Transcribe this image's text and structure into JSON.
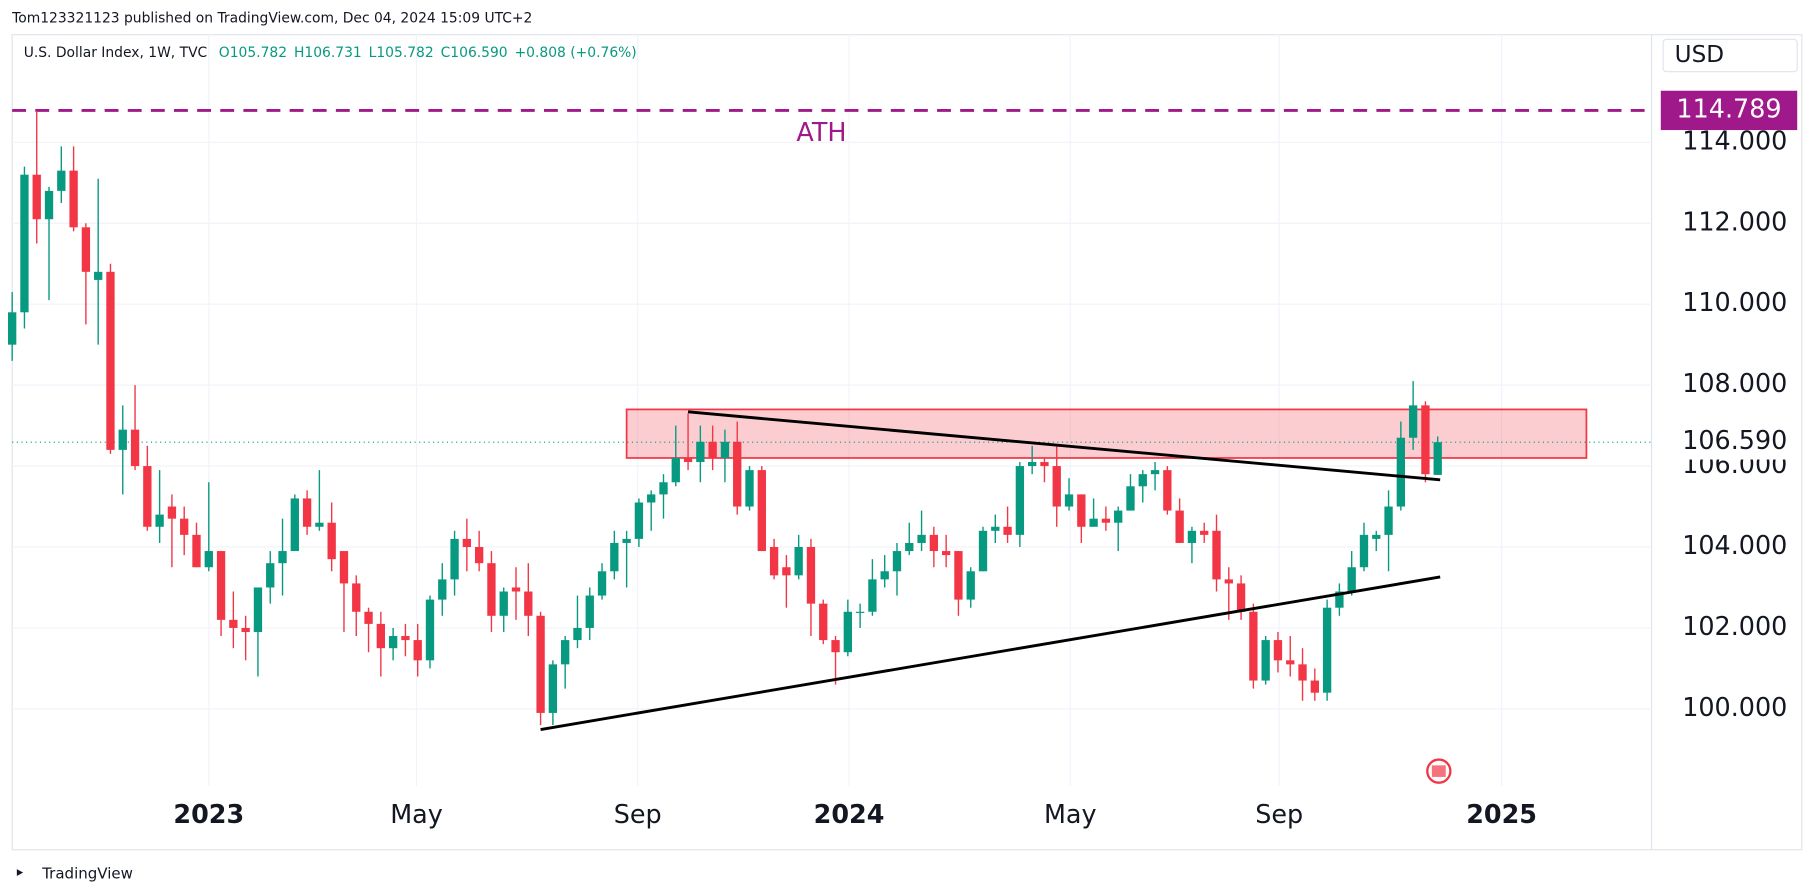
{
  "header": {
    "publisher": "Tom123321123 published on TradingView.com, Dec 04, 2024 15:09 UTC+2"
  },
  "footer": {
    "brand": "TradingView"
  },
  "chart_data": {
    "type": "candlestick",
    "title": "U.S. Dollar Index, 1W, TVC",
    "ohlc_legend": [
      "O105.782",
      "H106.731",
      "L105.782",
      "C106.590",
      "+0.808 (+0.76%)"
    ],
    "currency": "USD",
    "up_color": "#089981",
    "down_color": "#f23645",
    "open": [
      109.0,
      109.8,
      113.2,
      112.1,
      112.8,
      113.3,
      111.9,
      110.6,
      110.8,
      106.4,
      106.9,
      106.0,
      104.5,
      105.0,
      104.7,
      104.3,
      103.5,
      103.9,
      102.2,
      102.0,
      101.9,
      103.0,
      103.6,
      103.9,
      105.2,
      104.5,
      104.6,
      103.9,
      103.1,
      102.4,
      102.1,
      101.5,
      101.8,
      101.7,
      101.2,
      102.7,
      103.2,
      104.2,
      104.0,
      103.6,
      102.3,
      103.0,
      102.9,
      102.3,
      99.9,
      101.1,
      101.7,
      102.0,
      102.8,
      103.4,
      104.1,
      104.2,
      105.1,
      105.3,
      105.6,
      106.2,
      106.1,
      106.6,
      106.2,
      106.6,
      105.0,
      105.9,
      104.0,
      103.5,
      103.3,
      104.0,
      102.6,
      101.7,
      101.4,
      102.4,
      102.4,
      103.2,
      103.4,
      103.9,
      104.1,
      104.3,
      103.9,
      103.9,
      102.7,
      103.4,
      104.4,
      104.5,
      104.3,
      106.0,
      106.1,
      106.0,
      105.0,
      105.3,
      104.5,
      104.7,
      104.6,
      104.9,
      105.5,
      105.8,
      105.9,
      104.9,
      104.1,
      104.4,
      104.4,
      103.2,
      103.1,
      102.4,
      100.7,
      101.7,
      101.2,
      101.1,
      100.7,
      100.4,
      102.5,
      102.9,
      103.5,
      104.2,
      104.3,
      105.0,
      106.7,
      107.5,
      105.782
    ],
    "high": [
      110.3,
      113.4,
      114.78,
      112.9,
      113.9,
      113.9,
      112.0,
      113.1,
      111.0,
      107.5,
      108.0,
      106.5,
      105.9,
      105.3,
      105.0,
      104.6,
      105.6,
      103.9,
      102.9,
      102.3,
      103.0,
      103.9,
      104.7,
      105.3,
      105.4,
      105.9,
      105.1,
      103.9,
      103.3,
      102.5,
      102.4,
      102.0,
      102.1,
      102.1,
      102.8,
      103.6,
      104.4,
      104.7,
      104.4,
      103.9,
      103.0,
      103.5,
      103.6,
      102.4,
      101.2,
      101.8,
      102.8,
      103.0,
      103.6,
      104.4,
      104.4,
      105.2,
      105.4,
      105.8,
      107.0,
      107.3,
      107.0,
      107.0,
      106.9,
      107.1,
      106.0,
      106.0,
      104.2,
      103.8,
      104.3,
      104.2,
      102.7,
      101.8,
      102.7,
      102.6,
      103.7,
      103.8,
      104.1,
      104.6,
      104.9,
      104.5,
      104.3,
      103.9,
      103.5,
      104.5,
      104.8,
      105.0,
      106.1,
      106.5,
      106.2,
      106.5,
      105.7,
      105.3,
      105.2,
      105.0,
      105.0,
      105.8,
      105.9,
      106.1,
      106.0,
      105.2,
      104.5,
      104.6,
      104.8,
      103.5,
      103.3,
      102.6,
      101.8,
      101.9,
      101.8,
      101.5,
      101.0,
      102.7,
      103.1,
      103.9,
      104.6,
      104.4,
      105.4,
      107.1,
      108.1,
      107.6,
      106.731
    ],
    "low": [
      108.6,
      109.4,
      111.5,
      110.1,
      112.5,
      111.8,
      109.5,
      109.0,
      106.3,
      105.3,
      105.9,
      104.4,
      104.1,
      103.5,
      103.8,
      103.5,
      103.4,
      101.8,
      101.5,
      101.2,
      100.8,
      102.6,
      102.8,
      103.9,
      104.3,
      104.4,
      103.4,
      101.9,
      101.8,
      101.4,
      100.8,
      101.2,
      101.3,
      100.8,
      101.0,
      102.3,
      102.8,
      103.4,
      103.4,
      101.9,
      101.9,
      102.2,
      101.8,
      99.6,
      99.6,
      100.5,
      101.5,
      101.7,
      102.7,
      103.2,
      103.0,
      104.0,
      104.4,
      104.7,
      105.5,
      105.9,
      105.6,
      105.9,
      105.6,
      104.8,
      104.9,
      103.9,
      103.2,
      102.5,
      103.2,
      101.8,
      101.6,
      100.6,
      101.3,
      102.0,
      102.3,
      103.0,
      102.8,
      103.8,
      103.9,
      103.5,
      103.5,
      102.3,
      102.5,
      103.4,
      104.1,
      104.1,
      104.0,
      105.8,
      105.6,
      104.5,
      104.9,
      104.1,
      104.5,
      104.4,
      103.9,
      104.9,
      105.1,
      105.4,
      104.8,
      104.1,
      103.6,
      104.1,
      102.9,
      102.2,
      102.2,
      100.5,
      100.6,
      100.9,
      100.8,
      100.2,
      100.2,
      100.2,
      102.3,
      102.8,
      103.4,
      103.9,
      103.4,
      104.9,
      106.4,
      105.6,
      105.782
    ],
    "close": [
      109.8,
      113.2,
      112.1,
      112.8,
      113.3,
      111.9,
      110.8,
      110.8,
      106.4,
      106.9,
      106.0,
      104.5,
      104.8,
      104.7,
      104.3,
      103.5,
      103.9,
      102.2,
      102.0,
      101.9,
      103.0,
      103.6,
      103.9,
      105.2,
      104.5,
      104.6,
      103.7,
      103.1,
      102.4,
      102.1,
      101.5,
      101.8,
      101.7,
      101.2,
      102.7,
      103.2,
      104.2,
      104.0,
      103.6,
      102.3,
      102.9,
      102.9,
      102.3,
      99.9,
      101.1,
      101.7,
      102.0,
      102.8,
      103.4,
      104.1,
      104.2,
      105.1,
      105.3,
      105.6,
      106.2,
      106.1,
      106.6,
      106.2,
      106.6,
      105.0,
      105.9,
      103.9,
      103.3,
      103.3,
      104.0,
      102.6,
      101.7,
      101.4,
      102.4,
      102.4,
      103.2,
      103.4,
      103.9,
      104.1,
      104.3,
      103.9,
      103.8,
      102.7,
      103.4,
      104.4,
      104.5,
      104.3,
      106.0,
      106.1,
      106.0,
      105.0,
      105.3,
      104.5,
      104.7,
      104.6,
      104.9,
      105.5,
      105.8,
      105.9,
      104.9,
      104.1,
      104.4,
      104.3,
      103.2,
      103.1,
      102.4,
      100.7,
      101.7,
      101.2,
      101.1,
      100.7,
      100.4,
      102.5,
      102.9,
      103.5,
      104.3,
      104.3,
      105.0,
      106.7,
      107.5,
      105.8,
      106.59
    ],
    "xlim": [
      0,
      133.4
    ],
    "xticks": [
      {
        "value": 16,
        "label": "2023"
      },
      {
        "value": 32.9,
        "label": "May"
      },
      {
        "value": 50.9,
        "label": "Sep"
      },
      {
        "value": 68.1,
        "label": "2024"
      },
      {
        "value": 86.1,
        "label": "May"
      },
      {
        "value": 103.1,
        "label": "Sep"
      },
      {
        "value": 121.2,
        "label": "2025"
      }
    ],
    "ylim": [
      98.09,
      116.66
    ],
    "yticks": [
      {
        "value": 100,
        "label": "100.000"
      },
      {
        "value": 102,
        "label": "102.000"
      },
      {
        "value": 104,
        "label": "104.000"
      },
      {
        "value": 106,
        "label": "106.000"
      },
      {
        "value": 108,
        "label": "108.000"
      },
      {
        "value": 110,
        "label": "110.000"
      },
      {
        "value": 112,
        "label": "112.000"
      },
      {
        "value": 114,
        "label": "114.000"
      }
    ],
    "grid": true,
    "ath": {
      "text": "ATH",
      "value": 114.789,
      "value_label": "114.789",
      "color": "#a0198a"
    },
    "last_price": {
      "value": 106.59,
      "label": "106.590"
    },
    "zone": {
      "x": [
        50.0,
        128.1
      ],
      "y": [
        106.2,
        107.4
      ],
      "color": "#f23645"
    },
    "trendlines": [
      {
        "x": [
          55,
          116.2
        ],
        "y": [
          107.34,
          105.66
        ]
      },
      {
        "x": [
          43,
          116.2
        ],
        "y": [
          99.49,
          103.26
        ]
      }
    ]
  }
}
